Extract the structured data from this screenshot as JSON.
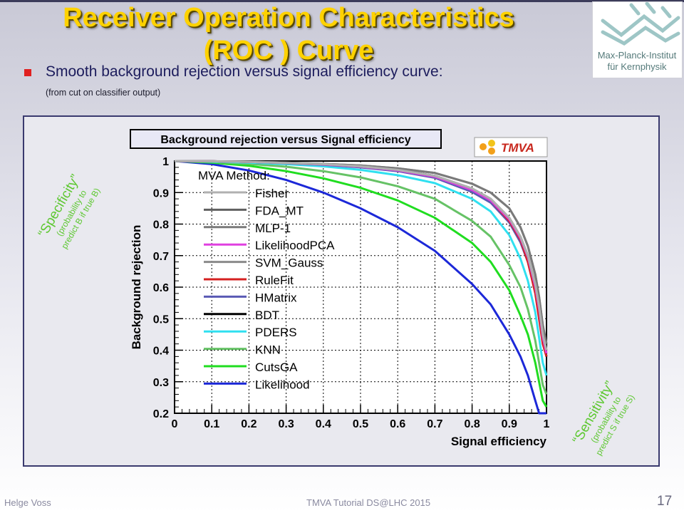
{
  "slide": {
    "title_line1": "Receiver Operation Characteristics",
    "title_line2": "(ROC ) Curve",
    "subtitle": "Smooth background rejection versus signal efficiency curve:",
    "note": "(from cut on classifier output)",
    "logo_text_line1": "Max-Planck-Institut",
    "logo_text_line2": "für Kernphysik",
    "footer_author": "Helge Voss",
    "footer_event": "TMVA Tutorial   DS@LHC 2015",
    "page_number": "17",
    "specificity_title": "“Specificity”",
    "specificity_line1": "(probability to",
    "specificity_line2": "predict B if true B)",
    "sensitivity_title": "“Sensitivity”",
    "sensitivity_line1": "(probability to",
    "sensitivity_line2": "predict S if true S)",
    "accent_color": "#ffd200",
    "annotation_color": "#5ec832"
  },
  "chart_data": {
    "type": "line",
    "title": "Background rejection versus Signal efficiency",
    "xlabel": "Signal efficiency",
    "ylabel": "Background rejection",
    "xlim": [
      0,
      1
    ],
    "ylim": [
      0.2,
      1
    ],
    "grid": true,
    "legend_title": "MVA Method:",
    "legend_position": "top-left",
    "tmva_logo_text": "TMVA",
    "xticks": [
      "0",
      "0.1",
      "0.2",
      "0.3",
      "0.4",
      "0.5",
      "0.6",
      "0.7",
      "0.8",
      "0.9",
      "1"
    ],
    "yticks": [
      "0.2",
      "0.3",
      "0.4",
      "0.5",
      "0.6",
      "0.7",
      "0.8",
      "0.9",
      "1"
    ],
    "x": [
      0,
      0.1,
      0.2,
      0.3,
      0.4,
      0.5,
      0.6,
      0.7,
      0.8,
      0.85,
      0.9,
      0.93,
      0.95,
      0.97,
      0.98,
      0.99,
      1.0
    ],
    "series": [
      {
        "name": "Fisher",
        "color": "#b0b0b0",
        "values": [
          1.0,
          0.999,
          0.997,
          0.994,
          0.99,
          0.983,
          0.972,
          0.953,
          0.913,
          0.88,
          0.82,
          0.76,
          0.7,
          0.61,
          0.54,
          0.45,
          0.4
        ]
      },
      {
        "name": "FDA_MT",
        "color": "#606060",
        "values": [
          1.0,
          0.999,
          0.997,
          0.994,
          0.99,
          0.983,
          0.972,
          0.953,
          0.913,
          0.88,
          0.82,
          0.76,
          0.7,
          0.61,
          0.54,
          0.45,
          0.4
        ]
      },
      {
        "name": "MLP-1",
        "color": "#7a7a7a",
        "values": [
          1.0,
          0.999,
          0.998,
          0.995,
          0.991,
          0.986,
          0.977,
          0.962,
          0.928,
          0.9,
          0.85,
          0.79,
          0.73,
          0.64,
          0.57,
          0.48,
          0.42
        ]
      },
      {
        "name": "LikelihoodPCA",
        "color": "#e040e0",
        "values": [
          1.0,
          0.999,
          0.997,
          0.994,
          0.989,
          0.982,
          0.97,
          0.95,
          0.908,
          0.875,
          0.815,
          0.755,
          0.695,
          0.6,
          0.53,
          0.44,
          0.39
        ]
      },
      {
        "name": "SVM_Gauss",
        "color": "#8a8a8a",
        "values": [
          1.0,
          0.999,
          0.998,
          0.995,
          0.991,
          0.986,
          0.977,
          0.962,
          0.928,
          0.9,
          0.85,
          0.79,
          0.73,
          0.64,
          0.57,
          0.48,
          0.42
        ]
      },
      {
        "name": "RuleFit",
        "color": "#d42020",
        "values": [
          1.0,
          0.999,
          0.997,
          0.994,
          0.99,
          0.983,
          0.972,
          0.952,
          0.91,
          0.875,
          0.81,
          0.75,
          0.68,
          0.58,
          0.5,
          0.42,
          0.38
        ]
      },
      {
        "name": "HMatrix",
        "color": "#5a5ab4",
        "values": [
          1.0,
          0.999,
          0.997,
          0.993,
          0.988,
          0.98,
          0.968,
          0.947,
          0.902,
          0.868,
          0.805,
          0.742,
          0.68,
          0.59,
          0.52,
          0.43,
          0.38
        ]
      },
      {
        "name": "BDT",
        "color": "#000000",
        "values": [
          1.0,
          0.999,
          0.997,
          0.994,
          0.99,
          0.983,
          0.972,
          0.953,
          0.912,
          0.878,
          0.815,
          0.752,
          0.69,
          0.59,
          0.52,
          0.43,
          0.38
        ]
      },
      {
        "name": "PDERS",
        "color": "#30e0f0",
        "values": [
          1.0,
          0.998,
          0.995,
          0.99,
          0.983,
          0.972,
          0.955,
          0.93,
          0.88,
          0.84,
          0.765,
          0.69,
          0.62,
          0.52,
          0.44,
          0.36,
          0.32
        ]
      },
      {
        "name": "KNN",
        "color": "#66c266",
        "values": [
          1.0,
          0.997,
          0.991,
          0.982,
          0.968,
          0.948,
          0.92,
          0.88,
          0.81,
          0.76,
          0.67,
          0.6,
          0.53,
          0.43,
          0.36,
          0.29,
          0.26
        ]
      },
      {
        "name": "CutsGA",
        "color": "#20dd20",
        "values": [
          1.0,
          0.995,
          0.985,
          0.968,
          0.945,
          0.915,
          0.875,
          0.82,
          0.74,
          0.68,
          0.59,
          0.51,
          0.45,
          0.36,
          0.3,
          0.24,
          0.22
        ]
      },
      {
        "name": "Likelihood",
        "color": "#1c28d8",
        "values": [
          1.0,
          0.99,
          0.97,
          0.94,
          0.9,
          0.85,
          0.79,
          0.715,
          0.61,
          0.545,
          0.45,
          0.38,
          0.32,
          0.24,
          0.2,
          0.2,
          0.2
        ]
      }
    ]
  }
}
